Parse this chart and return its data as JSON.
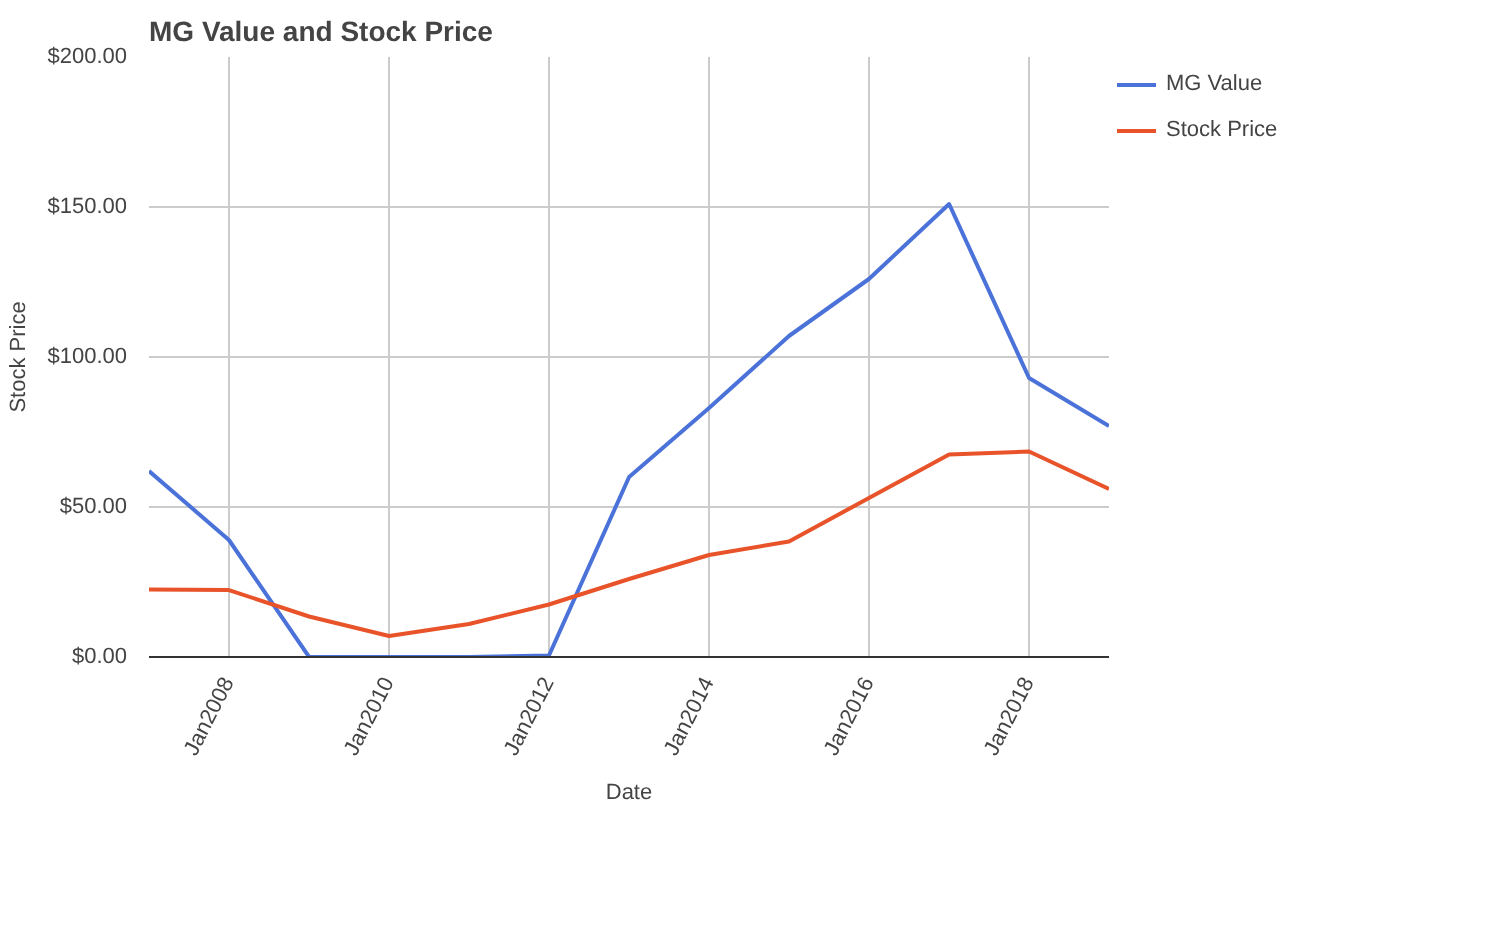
{
  "chart_data": {
    "type": "line",
    "title": "MG Value and Stock Price",
    "xlabel": "Date",
    "ylabel": "Stock Price",
    "x": [
      "2007-01",
      "2008-01",
      "2009-01",
      "2010-01",
      "2011-01",
      "2012-01",
      "2013-01",
      "2014-01",
      "2015-01",
      "2016-01",
      "2017-01",
      "2018-01",
      "2019-01"
    ],
    "series": [
      {
        "name": "MG Value",
        "color": "#4a72d8",
        "values": [
          62,
          39,
          0,
          0,
          0,
          0.5,
          60,
          83,
          107,
          126,
          151,
          93,
          77
        ]
      },
      {
        "name": "Stock Price",
        "color": "#e8532a",
        "values": [
          22.5,
          22.3,
          13.5,
          7,
          11,
          17.5,
          26,
          34,
          38.5,
          53,
          67.5,
          68.5,
          56
        ]
      }
    ],
    "xlim": [
      "2007-01",
      "2019-01"
    ],
    "xticks": [
      {
        "value": "2008-01",
        "label": "Jan2008"
      },
      {
        "value": "2010-01",
        "label": "Jan2010"
      },
      {
        "value": "2012-01",
        "label": "Jan2012"
      },
      {
        "value": "2014-01",
        "label": "Jan2014"
      },
      {
        "value": "2016-01",
        "label": "Jan2016"
      },
      {
        "value": "2018-01",
        "label": "Jan2018"
      }
    ],
    "ylim": [
      0,
      200
    ],
    "yticks": [
      {
        "value": 0,
        "label": "$0.00"
      },
      {
        "value": 50,
        "label": "$50.00"
      },
      {
        "value": 100,
        "label": "$100.00"
      },
      {
        "value": 150,
        "label": "$150.00"
      },
      {
        "value": 200,
        "label": "$200.00"
      }
    ],
    "grid": true,
    "legend": "top right"
  }
}
